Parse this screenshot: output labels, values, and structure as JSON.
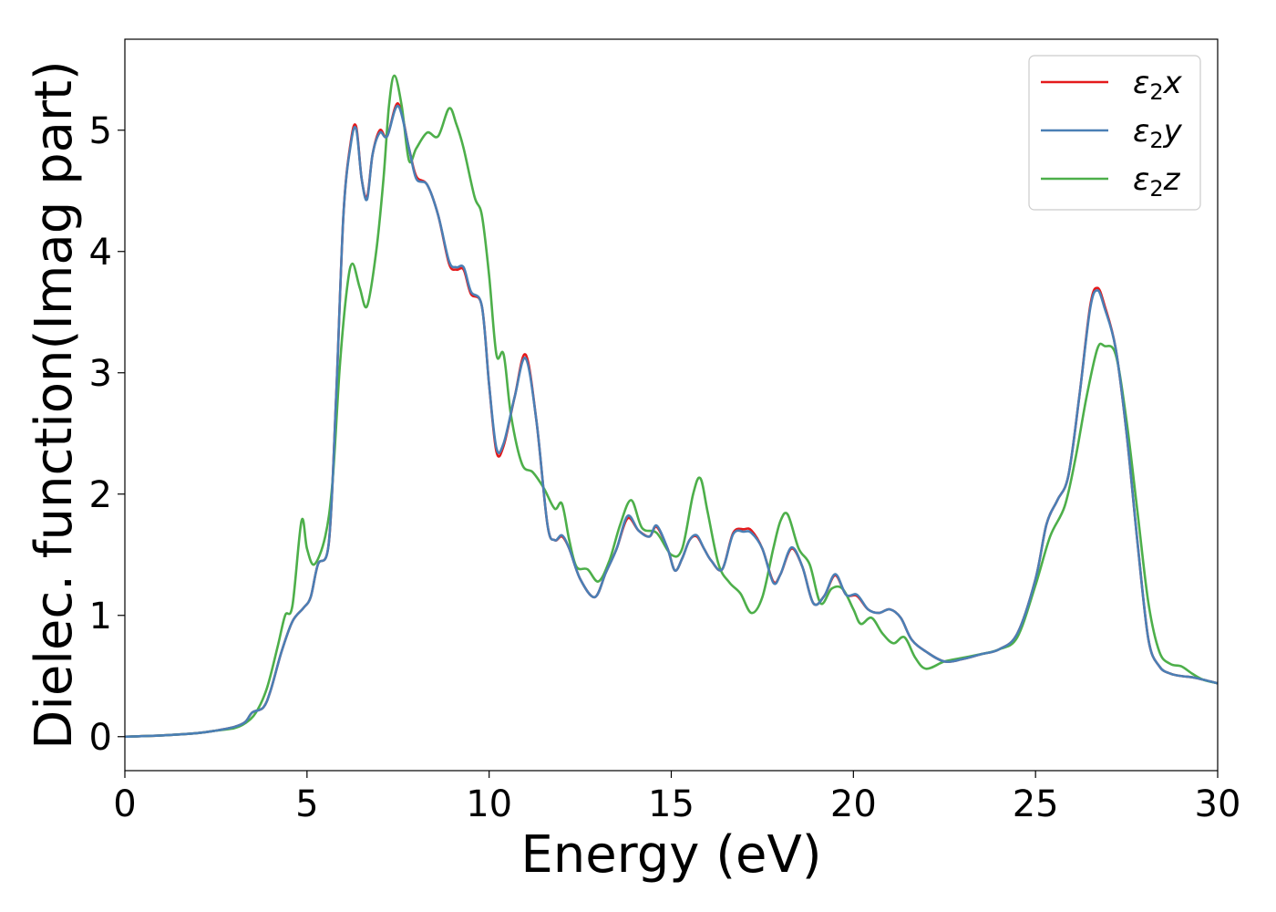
{
  "chart_data": {
    "type": "line",
    "title": "",
    "xlabel": "Energy (eV)",
    "ylabel": "Dielec. function(Imag part)",
    "xlim": [
      0,
      30
    ],
    "ylim": [
      -0.28,
      5.75
    ],
    "xticks": [
      0,
      5,
      10,
      15,
      20,
      25,
      30
    ],
    "xtick_labels": [
      "0",
      "5",
      "10",
      "15",
      "20",
      "25",
      "30"
    ],
    "yticks": [
      0,
      1,
      2,
      3,
      4,
      5
    ],
    "ytick_labels": [
      "0",
      "1",
      "2",
      "3",
      "4",
      "5"
    ],
    "grid": false,
    "legend_position": "top-right",
    "series": [
      {
        "name": "ε2x",
        "legend_main": "ε",
        "legend_sub": "2",
        "legend_var": "x",
        "color": "#e41a1c",
        "x": [
          0,
          1,
          2,
          2.5,
          3,
          3.3,
          3.5,
          3.8,
          4.0,
          4.3,
          4.6,
          4.9,
          5.1,
          5.3,
          5.6,
          5.8,
          6.0,
          6.2,
          6.35,
          6.5,
          6.65,
          6.8,
          7.0,
          7.2,
          7.5,
          7.8,
          8.0,
          8.3,
          8.6,
          8.9,
          9.1,
          9.3,
          9.5,
          9.8,
          10.0,
          10.2,
          10.4,
          10.7,
          11.0,
          11.3,
          11.6,
          11.8,
          12.0,
          12.2,
          12.5,
          12.9,
          13.2,
          13.5,
          13.8,
          14.1,
          14.4,
          14.6,
          14.9,
          15.1,
          15.3,
          15.5,
          15.7,
          15.9,
          16.1,
          16.4,
          16.7,
          17.0,
          17.2,
          17.5,
          17.8,
          18.0,
          18.3,
          18.6,
          18.9,
          19.2,
          19.5,
          19.8,
          20.1,
          20.4,
          20.7,
          21.0,
          21.3,
          21.6,
          22.0,
          22.5,
          23.0,
          23.5,
          24.0,
          24.5,
          25.0,
          25.3,
          25.6,
          25.9,
          26.2,
          26.5,
          26.7,
          26.9,
          27.2,
          27.5,
          27.8,
          28.1,
          28.4,
          28.7,
          29.0,
          29.3,
          29.6,
          30.0
        ],
        "y": [
          0.0,
          0.01,
          0.03,
          0.05,
          0.08,
          0.12,
          0.2,
          0.24,
          0.38,
          0.7,
          0.95,
          1.06,
          1.15,
          1.42,
          1.6,
          2.8,
          4.3,
          4.9,
          5.03,
          4.6,
          4.45,
          4.8,
          5.0,
          4.95,
          5.22,
          4.85,
          4.62,
          4.55,
          4.3,
          3.9,
          3.85,
          3.85,
          3.65,
          3.55,
          2.9,
          2.35,
          2.4,
          2.8,
          3.15,
          2.6,
          1.75,
          1.62,
          1.65,
          1.55,
          1.3,
          1.15,
          1.35,
          1.55,
          1.8,
          1.7,
          1.65,
          1.73,
          1.55,
          1.37,
          1.47,
          1.62,
          1.65,
          1.55,
          1.45,
          1.38,
          1.68,
          1.71,
          1.7,
          1.55,
          1.28,
          1.34,
          1.55,
          1.4,
          1.1,
          1.16,
          1.33,
          1.17,
          1.16,
          1.05,
          1.02,
          1.05,
          0.98,
          0.8,
          0.7,
          0.62,
          0.64,
          0.68,
          0.72,
          0.85,
          1.3,
          1.75,
          1.95,
          2.15,
          2.8,
          3.55,
          3.7,
          3.55,
          3.2,
          2.5,
          1.6,
          0.8,
          0.58,
          0.52,
          0.5,
          0.49,
          0.47,
          0.44
        ]
      },
      {
        "name": "ε2y",
        "legend_main": "ε",
        "legend_sub": "2",
        "legend_var": "y",
        "color": "#4a7fb5",
        "x": [
          0,
          1,
          2,
          2.5,
          3,
          3.3,
          3.5,
          3.8,
          4.0,
          4.3,
          4.6,
          4.9,
          5.1,
          5.3,
          5.6,
          5.8,
          6.0,
          6.2,
          6.35,
          6.5,
          6.65,
          6.8,
          7.0,
          7.2,
          7.5,
          7.8,
          8.0,
          8.3,
          8.6,
          8.9,
          9.1,
          9.3,
          9.5,
          9.8,
          10.0,
          10.2,
          10.4,
          10.7,
          11.0,
          11.3,
          11.6,
          11.8,
          12.0,
          12.2,
          12.5,
          12.9,
          13.2,
          13.5,
          13.8,
          14.1,
          14.4,
          14.6,
          14.9,
          15.1,
          15.3,
          15.5,
          15.7,
          15.9,
          16.1,
          16.4,
          16.7,
          17.0,
          17.2,
          17.5,
          17.8,
          18.0,
          18.3,
          18.6,
          18.9,
          19.2,
          19.5,
          19.8,
          20.1,
          20.4,
          20.7,
          21.0,
          21.3,
          21.6,
          22.0,
          22.5,
          23.0,
          23.5,
          24.0,
          24.5,
          25.0,
          25.3,
          25.6,
          25.9,
          26.2,
          26.5,
          26.7,
          26.9,
          27.2,
          27.5,
          27.8,
          28.1,
          28.4,
          28.7,
          29.0,
          29.3,
          29.6,
          30.0
        ],
        "y": [
          0.0,
          0.01,
          0.03,
          0.05,
          0.08,
          0.12,
          0.2,
          0.24,
          0.38,
          0.7,
          0.95,
          1.06,
          1.15,
          1.42,
          1.6,
          2.8,
          4.3,
          4.88,
          5.01,
          4.6,
          4.43,
          4.8,
          4.98,
          4.95,
          5.2,
          4.85,
          4.6,
          4.55,
          4.3,
          3.92,
          3.87,
          3.87,
          3.67,
          3.55,
          2.9,
          2.38,
          2.42,
          2.8,
          3.12,
          2.6,
          1.75,
          1.62,
          1.66,
          1.55,
          1.3,
          1.15,
          1.35,
          1.55,
          1.82,
          1.7,
          1.65,
          1.74,
          1.55,
          1.37,
          1.47,
          1.62,
          1.66,
          1.55,
          1.45,
          1.38,
          1.67,
          1.69,
          1.68,
          1.55,
          1.27,
          1.34,
          1.56,
          1.4,
          1.1,
          1.16,
          1.34,
          1.17,
          1.17,
          1.05,
          1.02,
          1.05,
          0.98,
          0.8,
          0.7,
          0.62,
          0.64,
          0.68,
          0.72,
          0.85,
          1.3,
          1.75,
          1.95,
          2.15,
          2.8,
          3.53,
          3.68,
          3.53,
          3.2,
          2.5,
          1.6,
          0.8,
          0.58,
          0.52,
          0.5,
          0.49,
          0.47,
          0.44
        ]
      },
      {
        "name": "ε2z",
        "legend_main": "ε",
        "legend_sub": "2",
        "legend_var": "z",
        "color": "#4daf4a",
        "x": [
          0,
          1,
          2,
          2.5,
          3,
          3.3,
          3.6,
          3.9,
          4.2,
          4.4,
          4.6,
          4.85,
          5.0,
          5.2,
          5.5,
          5.7,
          5.9,
          6.1,
          6.25,
          6.45,
          6.65,
          6.9,
          7.1,
          7.25,
          7.4,
          7.6,
          7.8,
          8.0,
          8.3,
          8.6,
          8.9,
          9.1,
          9.3,
          9.6,
          9.8,
          10.0,
          10.2,
          10.4,
          10.6,
          10.9,
          11.2,
          11.5,
          11.8,
          12.0,
          12.2,
          12.4,
          12.7,
          13.0,
          13.3,
          13.6,
          13.9,
          14.2,
          14.6,
          15.0,
          15.3,
          15.6,
          15.8,
          16.0,
          16.3,
          16.6,
          16.9,
          17.2,
          17.5,
          17.8,
          18.0,
          18.2,
          18.5,
          18.8,
          19.1,
          19.4,
          19.7,
          20.0,
          20.2,
          20.5,
          20.8,
          21.1,
          21.4,
          21.7,
          22.0,
          22.5,
          23.0,
          23.5,
          24.0,
          24.5,
          25.0,
          25.4,
          25.8,
          26.1,
          26.4,
          26.7,
          26.9,
          27.2,
          27.5,
          27.8,
          28.1,
          28.4,
          28.7,
          29.0,
          29.3,
          29.6,
          30.0
        ],
        "y": [
          0.0,
          0.01,
          0.03,
          0.05,
          0.07,
          0.11,
          0.2,
          0.4,
          0.75,
          1.0,
          1.08,
          1.78,
          1.55,
          1.42,
          1.65,
          2.1,
          3.05,
          3.7,
          3.9,
          3.7,
          3.55,
          4.0,
          4.6,
          5.2,
          5.45,
          5.2,
          4.75,
          4.85,
          4.98,
          4.95,
          5.18,
          5.05,
          4.85,
          4.45,
          4.3,
          3.8,
          3.15,
          3.15,
          2.65,
          2.25,
          2.18,
          2.05,
          1.88,
          1.92,
          1.62,
          1.4,
          1.38,
          1.28,
          1.45,
          1.75,
          1.95,
          1.72,
          1.68,
          1.5,
          1.55,
          2.0,
          2.13,
          1.85,
          1.42,
          1.27,
          1.18,
          1.02,
          1.15,
          1.55,
          1.78,
          1.83,
          1.55,
          1.42,
          1.1,
          1.22,
          1.22,
          1.05,
          0.93,
          0.98,
          0.85,
          0.77,
          0.82,
          0.65,
          0.56,
          0.62,
          0.65,
          0.68,
          0.72,
          0.82,
          1.25,
          1.65,
          1.9,
          2.3,
          2.8,
          3.2,
          3.22,
          3.15,
          2.6,
          1.85,
          1.1,
          0.7,
          0.6,
          0.58,
          0.52,
          0.47,
          0.44
        ]
      }
    ]
  }
}
